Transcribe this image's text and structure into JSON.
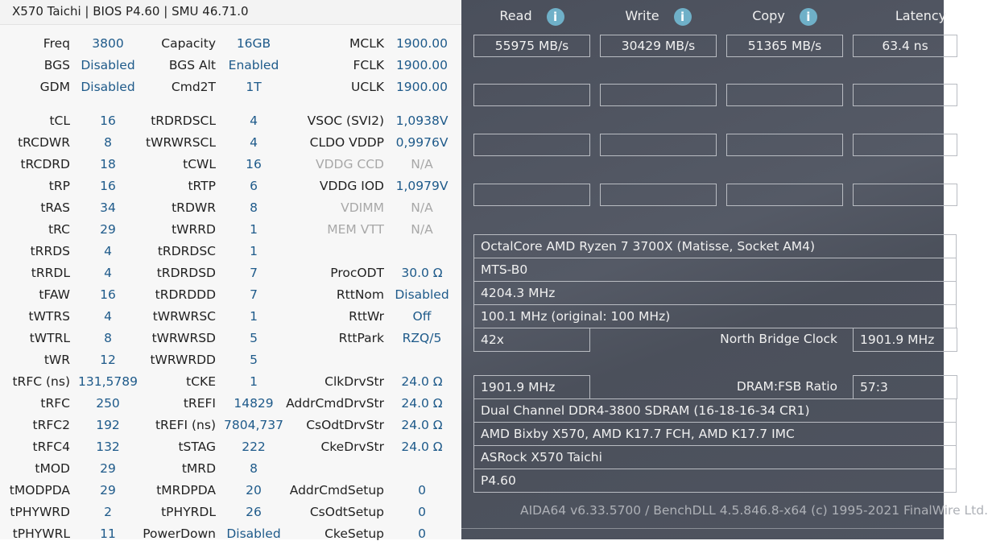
{
  "left_panel": {
    "title": "X570 Taichi | BIOS P4.60 | SMU 46.71.0",
    "top_rows": [
      [
        [
          "Freq",
          "3800"
        ],
        [
          "Capacity",
          "16GB"
        ],
        [
          "MCLK",
          "1900.00"
        ]
      ],
      [
        [
          "BGS",
          "Disabled"
        ],
        [
          "BGS Alt",
          "Enabled"
        ],
        [
          "FCLK",
          "1900.00"
        ]
      ],
      [
        [
          "GDM",
          "Disabled"
        ],
        [
          "Cmd2T",
          "1T"
        ],
        [
          "UCLK",
          "1900.00"
        ]
      ]
    ],
    "rows": [
      [
        [
          "tCL",
          "16"
        ],
        [
          "tRDRDSCL",
          "4"
        ],
        [
          "VSOC (SVI2)",
          "1,0938V"
        ]
      ],
      [
        [
          "tRCDWR",
          "8"
        ],
        [
          "tWRWRSCL",
          "4"
        ],
        [
          "CLDO VDDP",
          "0,9976V"
        ]
      ],
      [
        [
          "tRCDRD",
          "18"
        ],
        [
          "tCWL",
          "16"
        ],
        [
          "VDDG CCD",
          "N/A"
        ]
      ],
      [
        [
          "tRP",
          "16"
        ],
        [
          "tRTP",
          "6"
        ],
        [
          "VDDG IOD",
          "1,0979V"
        ]
      ],
      [
        [
          "tRAS",
          "34"
        ],
        [
          "tRDWR",
          "8"
        ],
        [
          "VDIMM",
          "N/A"
        ]
      ],
      [
        [
          "tRC",
          "29"
        ],
        [
          "tWRRD",
          "1"
        ],
        [
          "MEM VTT",
          "N/A"
        ]
      ],
      [
        [
          "tRRDS",
          "4"
        ],
        [
          "tRDRDSC",
          "1"
        ],
        [
          "",
          ""
        ]
      ],
      [
        [
          "tRRDL",
          "4"
        ],
        [
          "tRDRDSD",
          "7"
        ],
        [
          "ProcODT",
          "30.0 Ω"
        ]
      ],
      [
        [
          "tFAW",
          "16"
        ],
        [
          "tRDRDDD",
          "7"
        ],
        [
          "RttNom",
          "Disabled"
        ]
      ],
      [
        [
          "tWTRS",
          "4"
        ],
        [
          "tWRWRSC",
          "1"
        ],
        [
          "RttWr",
          "Off"
        ]
      ],
      [
        [
          "tWTRL",
          "8"
        ],
        [
          "tWRWRSD",
          "5"
        ],
        [
          "RttPark",
          "RZQ/5"
        ]
      ],
      [
        [
          "tWR",
          "12"
        ],
        [
          "tWRWRDD",
          "5"
        ],
        [
          "",
          ""
        ]
      ],
      [
        [
          "tRFC (ns)",
          "131,5789"
        ],
        [
          "tCKE",
          "1"
        ],
        [
          "ClkDrvStr",
          "24.0 Ω"
        ]
      ],
      [
        [
          "tRFC",
          "250"
        ],
        [
          "tREFI",
          "14829"
        ],
        [
          "AddrCmdDrvStr",
          "24.0 Ω"
        ]
      ],
      [
        [
          "tRFC2",
          "192"
        ],
        [
          "tREFI (ns)",
          "7804,737"
        ],
        [
          "CsOdtDrvStr",
          "24.0 Ω"
        ]
      ],
      [
        [
          "tRFC4",
          "132"
        ],
        [
          "tSTAG",
          "222"
        ],
        [
          "CkeDrvStr",
          "24.0 Ω"
        ]
      ],
      [
        [
          "tMOD",
          "29"
        ],
        [
          "tMRD",
          "8"
        ],
        [
          "",
          ""
        ]
      ],
      [
        [
          "tMODPDA",
          "29"
        ],
        [
          "tMRDPDA",
          "20"
        ],
        [
          "AddrCmdSetup",
          "0"
        ]
      ],
      [
        [
          "tPHYWRD",
          "2"
        ],
        [
          "tPHYRDL",
          "26"
        ],
        [
          "CsOdtSetup",
          "0"
        ]
      ],
      [
        [
          "tPHYWRL",
          "11"
        ],
        [
          "PowerDown",
          "Disabled"
        ],
        [
          "CkeSetup",
          "0"
        ]
      ]
    ],
    "dimmed_labels": [
      "VDDG CCD",
      "VDIMM",
      "MEM VTT"
    ]
  },
  "benchmark": {
    "columns": [
      {
        "label": "Read",
        "value": "55975 MB/s",
        "info_icon": true
      },
      {
        "label": "Write",
        "value": "30429 MB/s",
        "info_icon": true
      },
      {
        "label": "Copy",
        "value": "51365 MB/s",
        "info_icon": true
      },
      {
        "label": "Latency",
        "value": "63.4 ns",
        "info_icon": false
      }
    ],
    "info_icon_glyph": "i",
    "info_icon_color": "#6fb0c8"
  },
  "system_info": {
    "cpu_type": "OctalCore AMD Ryzen 7 3700X  (Matisse, Socket AM4)",
    "cpu_stepping": "MTS-B0",
    "cpu_clock": "4204.3 MHz",
    "cpu_fsb": "100.1 MHz  (original: 100 MHz)",
    "cpu_multiplier": "42x",
    "nb_clock_label": "North Bridge Clock",
    "nb_clock": "1901.9 MHz",
    "memory_bus": "1901.9 MHz",
    "dram_ratio_label": "DRAM:FSB Ratio",
    "dram_ratio": "57:3",
    "memory_type": "Dual Channel DDR4-3800 SDRAM  (16-18-16-34 CR1)",
    "chipset": "AMD Bixby X570, AMD K17.7 FCH, AMD K17.7 IMC",
    "motherboard": "ASRock X570 Taichi",
    "bios": "P4.60"
  },
  "footer": "AIDA64 v6.33.5700 / BenchDLL 4.5.846.8-x64  (c) 1995-2021 FinalWire Ltd."
}
